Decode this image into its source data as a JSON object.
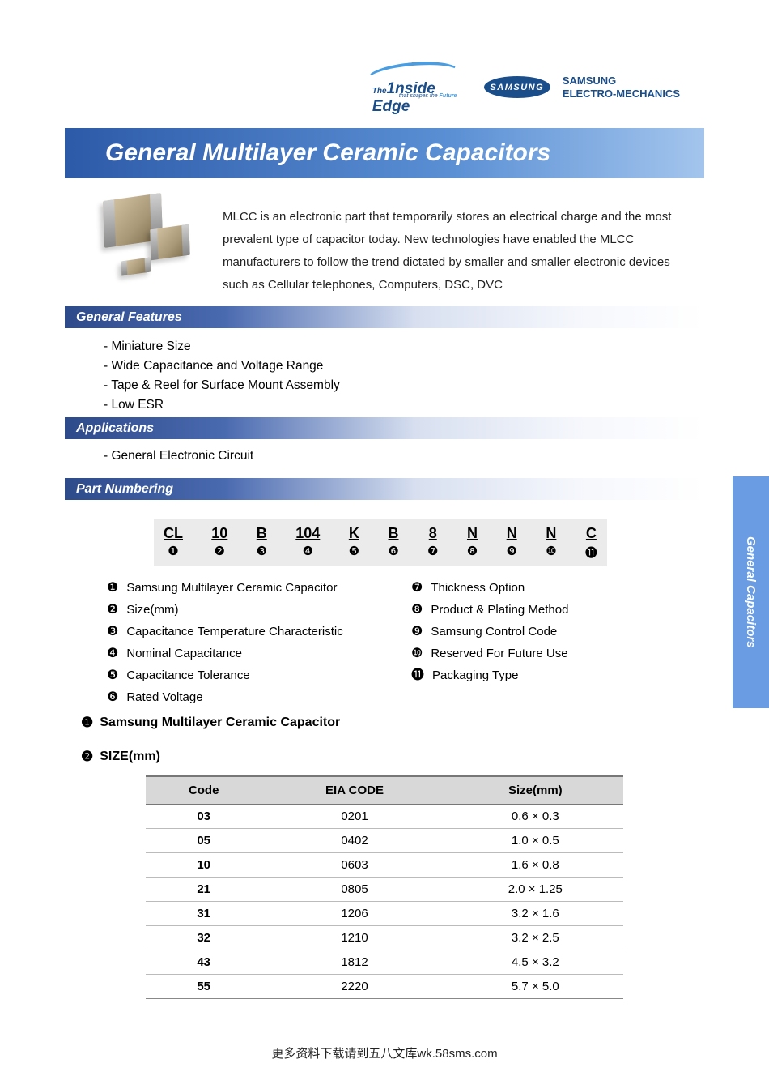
{
  "logos": {
    "inside_edge_prefix": "The",
    "inside_edge_main": "1nside Edge",
    "inside_edge_sub_pre": "that shapes the ",
    "inside_edge_sub_bold": "Future",
    "samsung_oval": "SAMSUNG",
    "samsung_line1": "SAMSUNG",
    "samsung_line2": "ELECTRO-MECHANICS"
  },
  "title": "General Multilayer Ceramic Capacitors",
  "intro": "MLCC is an electronic part that temporarily stores an electrical charge and  the most prevalent type of capacitor today.  New technologies have enabled the MLCC manufacturers to   follow the trend dictated by smaller and smaller electronic devices   such as Cellular telephones, Computers, DSC, DVC",
  "sections": {
    "features_title": "General Features",
    "features": [
      "- Miniature Size",
      "- Wide Capacitance and Voltage Range",
      "- Tape & Reel for Surface Mount Assembly",
      "- Low ESR"
    ],
    "applications_title": "Applications",
    "applications": [
      "- General Electronic Circuit"
    ],
    "partnumbering_title": "Part Numbering"
  },
  "side_tab": "General Capacitors",
  "part_code": {
    "chars": [
      "CL",
      "10",
      "B",
      "104",
      "K",
      "B",
      "8",
      "N",
      "N",
      "N",
      "C"
    ],
    "nums": [
      "❶",
      "❷",
      "❸",
      "❹",
      "❺",
      "❻",
      "❼",
      "❽",
      "❾",
      "❿",
      "⓫"
    ]
  },
  "legend_left": [
    {
      "num": "❶",
      "text": "Samsung  Multilayer Ceramic Capacitor"
    },
    {
      "num": "❷",
      "text": "Size(mm)"
    },
    {
      "num": "❸",
      "text": "Capacitance Temperature Characteristic"
    },
    {
      "num": "❹",
      "text": "Nominal Capacitance"
    },
    {
      "num": "❺",
      "text": "Capacitance Tolerance"
    },
    {
      "num": "❻",
      "text": "Rated Voltage"
    }
  ],
  "legend_right": [
    {
      "num": "❼",
      "text": "Thickness Option"
    },
    {
      "num": "❽",
      "text": "Product & Plating Method"
    },
    {
      "num": "❾",
      "text": "Samsung Control Code"
    },
    {
      "num": "❿",
      "text": "Reserved For Future Use"
    },
    {
      "num": "⓫",
      "text": "Packaging Type"
    }
  ],
  "section1": {
    "num": "❶",
    "title": "Samsung Multilayer Ceramic Capacitor"
  },
  "section2": {
    "num": "❷",
    "title": "SIZE(mm)"
  },
  "size_table": {
    "headers": [
      "Code",
      "EIA  CODE",
      "Size(mm)"
    ],
    "rows": [
      [
        "03",
        "0201",
        "0.6  ×  0.3"
      ],
      [
        "05",
        "0402",
        "1.0  ×  0.5"
      ],
      [
        "10",
        "0603",
        "1.6  ×  0.8"
      ],
      [
        "21",
        "0805",
        "2.0   ×  1.25"
      ],
      [
        "31",
        "1206",
        "3.2  ×  1.6"
      ],
      [
        "32",
        "1210",
        "3.2  ×  2.5"
      ],
      [
        "43",
        "1812",
        "4.5  ×  3.2"
      ],
      [
        "55",
        "2220",
        "5.7  ×  5.0"
      ]
    ]
  },
  "footer": "更多资料下载请到五八文库wk.58sms.com",
  "colors": {
    "banner_start": "#2d5aa8",
    "banner_end": "#a3c5ed",
    "section_start": "#2d4a8a",
    "side_tab": "#6a9ce4",
    "samsung_blue": "#1a4e8a",
    "table_header_bg": "#d8d8d8",
    "code_bg": "#ebebeb"
  }
}
